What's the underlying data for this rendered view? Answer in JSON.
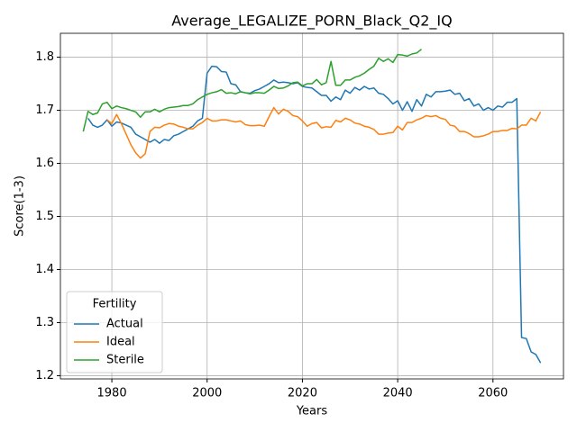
{
  "chart_data": {
    "type": "line",
    "title": "Average_LEGALIZE_PORN_Black_Q2_IQ",
    "xlabel": "Years",
    "ylabel": "Score(1-3)",
    "xlim": [
      1969.2,
      2074.8
    ],
    "ylim": [
      1.194,
      1.845
    ],
    "xticks": [
      1980,
      2000,
      2020,
      2040,
      2060
    ],
    "yticks": [
      1.2,
      1.3,
      1.4,
      1.5,
      1.6,
      1.7,
      1.8
    ],
    "grid": true,
    "legend_title": "Fertility",
    "legend_loc": "lower left",
    "series": [
      {
        "name": "Actual",
        "color": "#1f77b4",
        "x": [
          1975,
          1976,
          1977,
          1978,
          1979,
          1980,
          1981,
          1982,
          1983,
          1984,
          1985,
          1986,
          1987,
          1988,
          1989,
          1990,
          1991,
          1992,
          1993,
          1994,
          1995,
          1996,
          1997,
          1998,
          1999,
          2000,
          2001,
          2002,
          2003,
          2004,
          2005,
          2006,
          2007,
          2008,
          2009,
          2010,
          2011,
          2012,
          2013,
          2014,
          2015,
          2016,
          2017,
          2018,
          2019,
          2020,
          2021,
          2022,
          2023,
          2024,
          2025,
          2026,
          2027,
          2028,
          2029,
          2030,
          2031,
          2032,
          2033,
          2034,
          2035,
          2036,
          2037,
          2038,
          2039,
          2040,
          2041,
          2042,
          2043,
          2044,
          2045,
          2046,
          2047,
          2048,
          2049,
          2050,
          2051,
          2052,
          2053,
          2054,
          2055,
          2056,
          2057,
          2058,
          2059,
          2060,
          2061,
          2062,
          2063,
          2064,
          2065,
          2066,
          2067,
          2068,
          2069,
          2070
        ],
        "values": [
          1.685,
          1.672,
          1.668,
          1.672,
          1.682,
          1.67,
          1.678,
          1.676,
          1.672,
          1.668,
          1.655,
          1.65,
          1.645,
          1.64,
          1.645,
          1.638,
          1.645,
          1.643,
          1.652,
          1.655,
          1.66,
          1.665,
          1.67,
          1.68,
          1.685,
          1.77,
          1.783,
          1.782,
          1.773,
          1.772,
          1.75,
          1.748,
          1.735,
          1.733,
          1.732,
          1.737,
          1.74,
          1.745,
          1.75,
          1.757,
          1.752,
          1.753,
          1.752,
          1.75,
          1.752,
          1.745,
          1.743,
          1.742,
          1.735,
          1.728,
          1.728,
          1.717,
          1.725,
          1.72,
          1.738,
          1.732,
          1.743,
          1.738,
          1.745,
          1.74,
          1.742,
          1.732,
          1.73,
          1.722,
          1.712,
          1.718,
          1.7,
          1.716,
          1.698,
          1.72,
          1.708,
          1.73,
          1.725,
          1.735,
          1.735,
          1.736,
          1.738,
          1.73,
          1.732,
          1.718,
          1.722,
          1.708,
          1.712,
          1.7,
          1.705,
          1.7,
          1.708,
          1.706,
          1.715,
          1.715,
          1.722,
          1.272,
          1.27,
          1.245,
          1.24,
          1.224
        ]
      },
      {
        "name": "Ideal",
        "color": "#ff7f0e",
        "x": [
          1979,
          1980,
          1981,
          1982,
          1983,
          1984,
          1985,
          1986,
          1987,
          1988,
          1989,
          1990,
          1991,
          1992,
          1993,
          1994,
          1995,
          1996,
          1997,
          1998,
          1999,
          2000,
          2001,
          2002,
          2003,
          2004,
          2005,
          2006,
          2007,
          2008,
          2009,
          2010,
          2011,
          2012,
          2013,
          2014,
          2015,
          2016,
          2017,
          2018,
          2019,
          2020,
          2021,
          2022,
          2023,
          2024,
          2025,
          2026,
          2027,
          2028,
          2029,
          2030,
          2031,
          2032,
          2033,
          2034,
          2035,
          2036,
          2037,
          2038,
          2039,
          2040,
          2041,
          2042,
          2043,
          2044,
          2045,
          2046,
          2047,
          2048,
          2049,
          2050,
          2051,
          2052,
          2053,
          2054,
          2055,
          2056,
          2057,
          2058,
          2059,
          2060,
          2061,
          2062,
          2063,
          2064,
          2065,
          2066,
          2067,
          2068,
          2069,
          2070
        ],
        "values": [
          1.682,
          1.675,
          1.692,
          1.675,
          1.655,
          1.635,
          1.62,
          1.61,
          1.618,
          1.66,
          1.668,
          1.667,
          1.672,
          1.675,
          1.674,
          1.67,
          1.668,
          1.665,
          1.665,
          1.672,
          1.677,
          1.685,
          1.68,
          1.68,
          1.682,
          1.682,
          1.68,
          1.678,
          1.68,
          1.673,
          1.671,
          1.671,
          1.672,
          1.67,
          1.688,
          1.705,
          1.693,
          1.702,
          1.698,
          1.69,
          1.688,
          1.68,
          1.67,
          1.675,
          1.677,
          1.667,
          1.669,
          1.668,
          1.681,
          1.678,
          1.685,
          1.682,
          1.676,
          1.674,
          1.67,
          1.668,
          1.664,
          1.655,
          1.655,
          1.657,
          1.658,
          1.67,
          1.663,
          1.677,
          1.677,
          1.682,
          1.685,
          1.69,
          1.688,
          1.69,
          1.685,
          1.683,
          1.672,
          1.67,
          1.66,
          1.66,
          1.656,
          1.65,
          1.65,
          1.652,
          1.655,
          1.66,
          1.66,
          1.662,
          1.662,
          1.666,
          1.665,
          1.672,
          1.672,
          1.685,
          1.68,
          1.697
        ]
      },
      {
        "name": "Sterile",
        "color": "#2ca02c",
        "x": [
          1974,
          1975,
          1976,
          1977,
          1978,
          1979,
          1980,
          1981,
          1982,
          1983,
          1984,
          1985,
          1986,
          1987,
          1988,
          1989,
          1990,
          1991,
          1992,
          1993,
          1994,
          1995,
          1996,
          1997,
          1998,
          1999,
          2000,
          2001,
          2002,
          2003,
          2004,
          2005,
          2006,
          2007,
          2008,
          2009,
          2010,
          2011,
          2012,
          2013,
          2014,
          2015,
          2016,
          2017,
          2018,
          2019,
          2020,
          2021,
          2022,
          2023,
          2024,
          2025,
          2026,
          2027,
          2028,
          2029,
          2030,
          2031,
          2032,
          2033,
          2034,
          2035,
          2036,
          2037,
          2038,
          2039,
          2040,
          2041,
          2042,
          2043,
          2044,
          2045
        ],
        "values": [
          1.66,
          1.698,
          1.692,
          1.695,
          1.712,
          1.715,
          1.703,
          1.708,
          1.705,
          1.703,
          1.7,
          1.697,
          1.687,
          1.697,
          1.697,
          1.702,
          1.697,
          1.702,
          1.705,
          1.706,
          1.707,
          1.709,
          1.709,
          1.712,
          1.72,
          1.725,
          1.73,
          1.733,
          1.735,
          1.739,
          1.732,
          1.733,
          1.731,
          1.735,
          1.733,
          1.731,
          1.733,
          1.733,
          1.732,
          1.738,
          1.745,
          1.741,
          1.742,
          1.746,
          1.752,
          1.753,
          1.746,
          1.75,
          1.75,
          1.758,
          1.748,
          1.752,
          1.792,
          1.747,
          1.747,
          1.757,
          1.757,
          1.762,
          1.765,
          1.77,
          1.777,
          1.783,
          1.798,
          1.792,
          1.797,
          1.79,
          1.805,
          1.804,
          1.802,
          1.806,
          1.808,
          1.815
        ]
      }
    ]
  }
}
